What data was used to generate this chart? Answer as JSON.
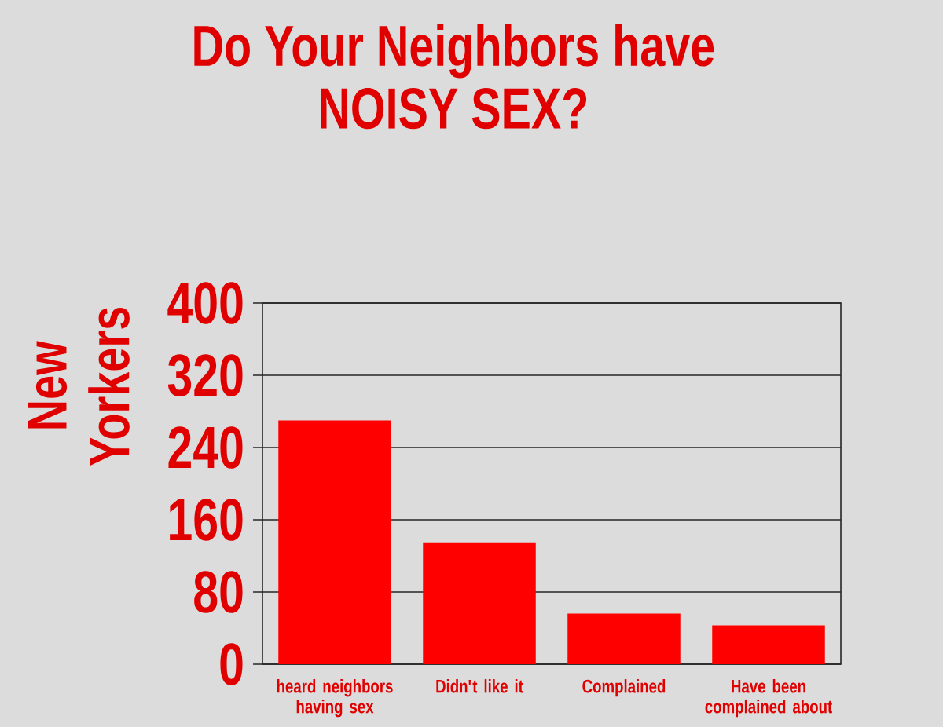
{
  "chart_data": {
    "type": "bar",
    "title": "Do Your Neighbors have NOISY SEX?",
    "ylabel": "New Yorkers",
    "categories": [
      "heard neighbors having sex",
      "Didn't like it",
      "Complained",
      "Have been complained about"
    ],
    "values": [
      270,
      135,
      56,
      43
    ],
    "color": "#ff0000",
    "ylim": [
      0,
      400
    ],
    "yticks": [
      0,
      80,
      160,
      240,
      320,
      400
    ],
    "grid": "y"
  }
}
